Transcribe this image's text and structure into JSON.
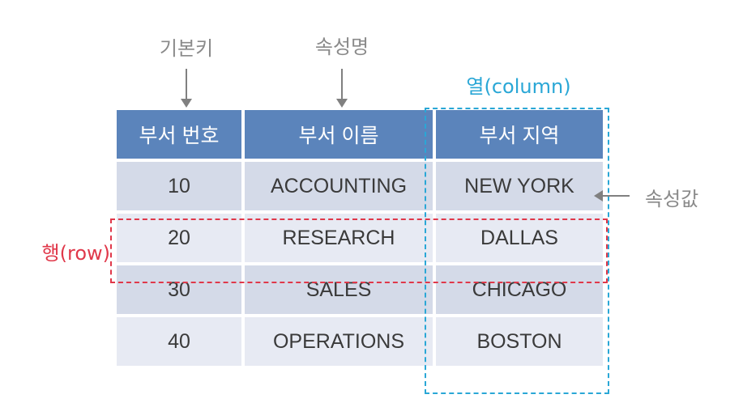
{
  "annotations": {
    "primary_key": "기본키",
    "attribute_name": "속성명",
    "column": "열(column)",
    "row": "행(row)",
    "attribute_value": "속성값"
  },
  "table": {
    "headers": [
      "부서 번호",
      "부서 이름",
      "부서 지역"
    ],
    "rows": [
      [
        "10",
        "ACCOUNTING",
        "NEW YORK"
      ],
      [
        "20",
        "RESEARCH",
        "DALLAS"
      ],
      [
        "30",
        "SALES",
        "CHICAGO"
      ],
      [
        "40",
        "OPERATIONS",
        "BOSTON"
      ]
    ]
  },
  "colors": {
    "header_bg": "#5b84bb",
    "row_dark": "#d4dae8",
    "row_light": "#e7eaf3",
    "column_highlight": "#2aa7d6",
    "row_highlight": "#e0384a"
  }
}
